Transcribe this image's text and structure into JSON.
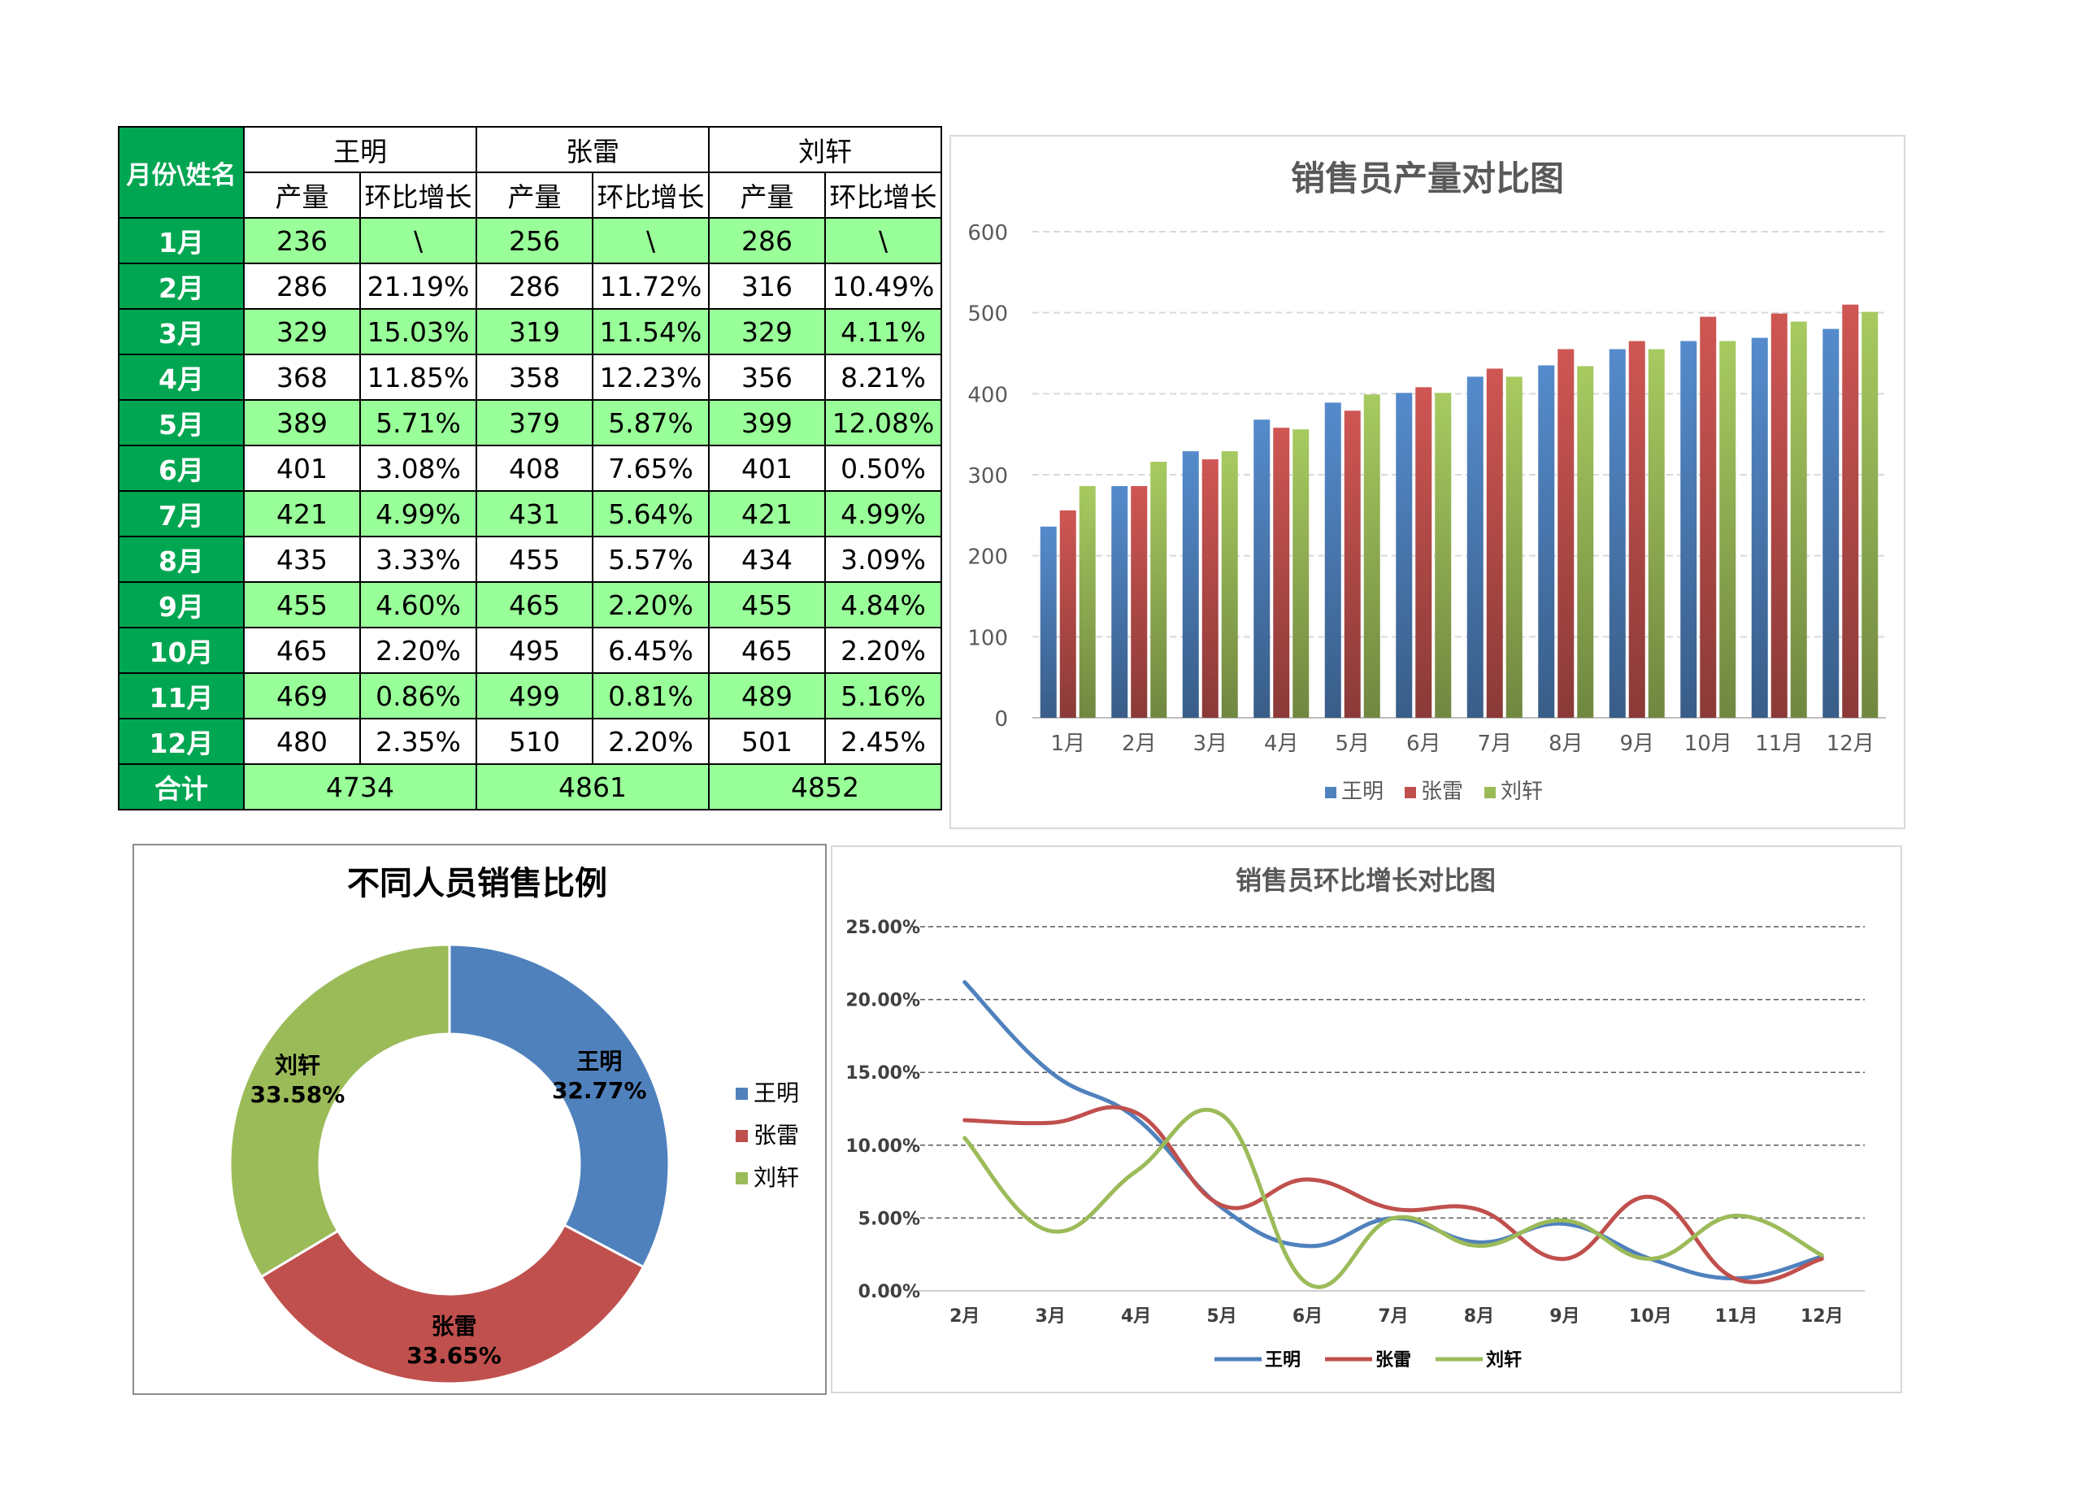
{
  "table": {
    "corner_label": "月份\\姓名",
    "people": [
      "王明",
      "张雷",
      "刘轩"
    ],
    "sub_headers": [
      "产量",
      "环比增长"
    ],
    "rows": [
      {
        "month": "1月",
        "cells": [
          "236",
          "\\",
          "256",
          "\\",
          "286",
          "\\"
        ]
      },
      {
        "month": "2月",
        "cells": [
          "286",
          "21.19%",
          "286",
          "11.72%",
          "316",
          "10.49%"
        ]
      },
      {
        "month": "3月",
        "cells": [
          "329",
          "15.03%",
          "319",
          "11.54%",
          "329",
          "4.11%"
        ]
      },
      {
        "month": "4月",
        "cells": [
          "368",
          "11.85%",
          "358",
          "12.23%",
          "356",
          "8.21%"
        ]
      },
      {
        "month": "5月",
        "cells": [
          "389",
          "5.71%",
          "379",
          "5.87%",
          "399",
          "12.08%"
        ]
      },
      {
        "month": "6月",
        "cells": [
          "401",
          "3.08%",
          "408",
          "7.65%",
          "401",
          "0.50%"
        ]
      },
      {
        "month": "7月",
        "cells": [
          "421",
          "4.99%",
          "431",
          "5.64%",
          "421",
          "4.99%"
        ]
      },
      {
        "month": "8月",
        "cells": [
          "435",
          "3.33%",
          "455",
          "5.57%",
          "434",
          "3.09%"
        ]
      },
      {
        "month": "9月",
        "cells": [
          "455",
          "4.60%",
          "465",
          "2.20%",
          "455",
          "4.84%"
        ]
      },
      {
        "month": "10月",
        "cells": [
          "465",
          "2.20%",
          "495",
          "6.45%",
          "465",
          "2.20%"
        ]
      },
      {
        "month": "11月",
        "cells": [
          "469",
          "0.86%",
          "499",
          "0.81%",
          "489",
          "5.16%"
        ]
      },
      {
        "month": "12月",
        "cells": [
          "480",
          "2.35%",
          "510",
          "2.20%",
          "501",
          "2.45%"
        ]
      }
    ],
    "total_label": "合计",
    "totals": [
      "4734",
      "4861",
      "4852"
    ]
  },
  "colors": {
    "王明": "#4f81bd",
    "张雷": "#c0504d",
    "刘轩": "#9bbb59",
    "table_header_green": "#00a651",
    "table_row_green": "#99ff99"
  },
  "chart_data": [
    {
      "id": "bar",
      "type": "bar",
      "title": "销售员产量对比图",
      "categories": [
        "1月",
        "2月",
        "3月",
        "4月",
        "5月",
        "6月",
        "7月",
        "8月",
        "9月",
        "10月",
        "11月",
        "12月"
      ],
      "series": [
        {
          "name": "王明",
          "values": [
            236,
            286,
            329,
            368,
            389,
            401,
            421,
            435,
            455,
            465,
            469,
            480
          ]
        },
        {
          "name": "张雷",
          "values": [
            256,
            286,
            319,
            358,
            379,
            408,
            431,
            455,
            465,
            495,
            499,
            510
          ]
        },
        {
          "name": "刘轩",
          "values": [
            286,
            316,
            329,
            356,
            399,
            401,
            421,
            434,
            455,
            465,
            489,
            501
          ]
        }
      ],
      "ylim": [
        0,
        600
      ],
      "yticks": [
        0,
        100,
        200,
        300,
        400,
        500,
        600
      ],
      "grid": true,
      "legend": "bottom"
    },
    {
      "id": "donut",
      "type": "pie",
      "title": "不同人员销售比例",
      "slices": [
        {
          "name": "王明",
          "value": 4734,
          "label": "32.77%"
        },
        {
          "name": "张雷",
          "value": 4861,
          "label": "33.65%"
        },
        {
          "name": "刘轩",
          "value": 4852,
          "label": "33.58%"
        }
      ],
      "legend": "right"
    },
    {
      "id": "line",
      "type": "line",
      "title": "销售员环比增长对比图",
      "categories": [
        "2月",
        "3月",
        "4月",
        "5月",
        "6月",
        "7月",
        "8月",
        "9月",
        "10月",
        "11月",
        "12月"
      ],
      "series": [
        {
          "name": "王明",
          "values": [
            21.19,
            15.03,
            11.85,
            5.71,
            3.08,
            4.99,
            3.33,
            4.6,
            2.2,
            0.86,
            2.35
          ]
        },
        {
          "name": "张雷",
          "values": [
            11.72,
            11.54,
            12.23,
            5.87,
            7.65,
            5.64,
            5.57,
            2.2,
            6.45,
            0.81,
            2.2
          ]
        },
        {
          "name": "刘轩",
          "values": [
            10.49,
            4.11,
            8.21,
            12.08,
            0.5,
            4.99,
            3.09,
            4.84,
            2.2,
            5.16,
            2.45
          ]
        }
      ],
      "ylim": [
        0,
        25
      ],
      "yticks": [
        "0.00%",
        "5.00%",
        "10.00%",
        "15.00%",
        "20.00%",
        "25.00%"
      ],
      "grid": true,
      "legend": "bottom"
    }
  ]
}
